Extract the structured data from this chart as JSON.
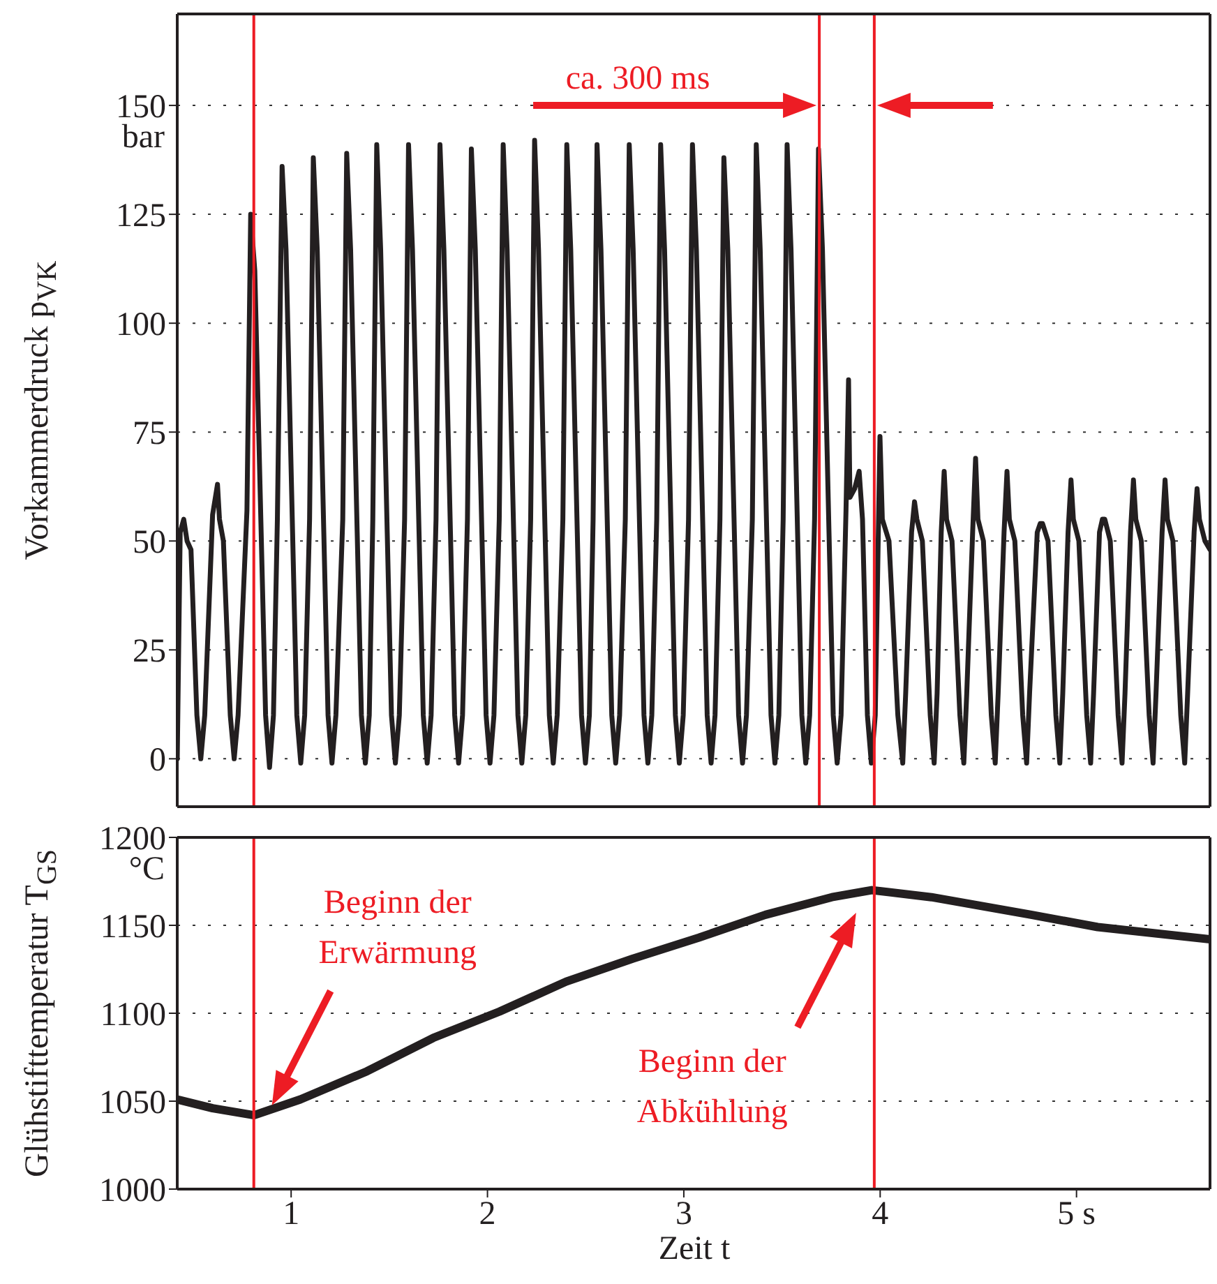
{
  "chart_data": [
    {
      "type": "line",
      "ylabel": "Vorkammerdruck p$_{VK}$",
      "xlim": [
        0.42,
        5.68
      ],
      "xticks": [
        1,
        2,
        3,
        4,
        5
      ],
      "ylim": [
        -11,
        171
      ],
      "yticks": [
        0,
        25,
        50,
        75,
        100,
        125,
        150
      ],
      "grid": "y",
      "marker": "none",
      "tick_labels": "y",
      "x": [
        0.42,
        0.435,
        0.453,
        0.47,
        0.49,
        0.52,
        0.54,
        0.56,
        0.6,
        0.625,
        0.635,
        0.655,
        0.69,
        0.71,
        0.73,
        0.775,
        0.794,
        0.815,
        0.87,
        0.89,
        0.91,
        0.93,
        0.954,
        0.974,
        1.029,
        1.049,
        1.069,
        1.094,
        1.113,
        1.133,
        1.188,
        1.208,
        1.228,
        1.263,
        1.283,
        1.303,
        1.358,
        1.378,
        1.398,
        1.416,
        1.436,
        1.456,
        1.511,
        1.531,
        1.551,
        1.578,
        1.598,
        1.618,
        1.673,
        1.693,
        1.713,
        1.738,
        1.758,
        1.778,
        1.833,
        1.853,
        1.873,
        1.898,
        1.918,
        1.938,
        1.993,
        2.013,
        2.033,
        2.06,
        2.08,
        2.1,
        2.155,
        2.175,
        2.195,
        2.22,
        2.24,
        2.26,
        2.315,
        2.335,
        2.355,
        2.384,
        2.404,
        2.424,
        2.479,
        2.499,
        2.519,
        2.538,
        2.558,
        2.578,
        2.633,
        2.653,
        2.673,
        2.702,
        2.722,
        2.742,
        2.797,
        2.817,
        2.837,
        2.862,
        2.882,
        2.902,
        2.957,
        2.977,
        2.997,
        3.024,
        3.044,
        3.064,
        3.119,
        3.139,
        3.159,
        3.184,
        3.204,
        3.224,
        3.279,
        3.299,
        3.319,
        3.349,
        3.369,
        3.389,
        3.444,
        3.464,
        3.484,
        3.506,
        3.526,
        3.546,
        3.601,
        3.621,
        3.641,
        3.666,
        3.686,
        3.706,
        3.761,
        3.781,
        3.801,
        3.826,
        3.839,
        3.846,
        3.87,
        3.893,
        3.91,
        3.935,
        3.955,
        3.975,
        3.99,
        3.999,
        4.011,
        4.045,
        4.09,
        4.115,
        4.13,
        4.16,
        4.175,
        4.187,
        4.215,
        4.255,
        4.275,
        4.29,
        4.311,
        4.326,
        4.338,
        4.366,
        4.406,
        4.426,
        4.441,
        4.471,
        4.486,
        4.498,
        4.526,
        4.566,
        4.586,
        4.601,
        4.631,
        4.646,
        4.658,
        4.686,
        4.726,
        4.746,
        4.761,
        4.8,
        4.815,
        4.827,
        4.855,
        4.895,
        4.915,
        4.93,
        4.957,
        4.972,
        4.984,
        5.012,
        5.052,
        5.072,
        5.087,
        5.117,
        5.132,
        5.144,
        5.172,
        5.212,
        5.232,
        5.247,
        5.275,
        5.29,
        5.302,
        5.33,
        5.37,
        5.39,
        5.405,
        5.436,
        5.451,
        5.463,
        5.491,
        5.531,
        5.551,
        5.566,
        5.599,
        5.614,
        5.626,
        5.654,
        5.68
      ],
      "series": [
        {
          "color": "#231f20",
          "values": [
            0,
            52,
            55,
            50,
            48,
            10,
            0,
            10,
            56,
            63,
            55,
            50,
            10,
            0,
            10,
            57,
            125,
            112,
            10,
            -2,
            10,
            55,
            136,
            117,
            10,
            -1,
            10,
            55,
            138,
            117,
            10,
            -1,
            10,
            55,
            139,
            117,
            10,
            -1,
            10,
            55,
            141,
            117,
            10,
            -1,
            10,
            55,
            141,
            117,
            10,
            -1,
            10,
            55,
            141,
            117,
            10,
            -1,
            10,
            55,
            140,
            117,
            10,
            -1,
            10,
            55,
            141,
            117,
            10,
            -1,
            10,
            55,
            142,
            117,
            10,
            -1,
            10,
            55,
            141,
            117,
            10,
            -1,
            10,
            55,
            141,
            117,
            10,
            -1,
            10,
            55,
            141,
            117,
            10,
            -1,
            10,
            55,
            141,
            117,
            10,
            -1,
            10,
            55,
            141,
            117,
            10,
            -1,
            10,
            55,
            138,
            117,
            10,
            -1,
            10,
            55,
            141,
            117,
            10,
            -1,
            10,
            55,
            141,
            117,
            10,
            -1,
            10,
            55,
            140,
            117,
            10,
            -1,
            10,
            57,
            87,
            60,
            62,
            66,
            55,
            10,
            -1,
            10,
            50,
            74,
            55,
            50,
            10,
            -1,
            15,
            52,
            59,
            55,
            50,
            10,
            -1,
            15,
            52,
            66,
            55,
            50,
            10,
            -1,
            15,
            52,
            69,
            55,
            50,
            10,
            -1,
            15,
            52,
            66,
            55,
            50,
            10,
            -1,
            15,
            52,
            54,
            54,
            50,
            10,
            -1,
            15,
            52,
            64,
            55,
            50,
            10,
            -1,
            15,
            52,
            55,
            55,
            50,
            10,
            -1,
            15,
            52,
            64,
            55,
            50,
            10,
            -1,
            15,
            52,
            64,
            55,
            50,
            10,
            -1,
            15,
            52,
            62,
            55,
            50,
            48
          ]
        }
      ],
      "ref_lines": [
        {
          "axis": "x",
          "value": 0.81,
          "color": "#ed1c24"
        },
        {
          "axis": "x",
          "value": 3.69,
          "color": "#ed1c24"
        },
        {
          "axis": "x",
          "value": 3.97,
          "color": "#ed1c24"
        }
      ],
      "annotations": [
        "bar",
        "ca. 300 ms"
      ]
    },
    {
      "type": "line",
      "ylabel": "Glühstifttemperatur T$_{GS}$",
      "xlabel": "Zeit t",
      "xlim": [
        0.42,
        5.68
      ],
      "xticks": [
        1,
        2,
        3,
        4,
        {
          "value": 5,
          "label": "5 s"
        }
      ],
      "ylim": [
        1000,
        1200
      ],
      "yticks": [
        1000,
        1050,
        1100,
        1150,
        1200
      ],
      "grid": "y",
      "marker": "none",
      "x": [
        0.42,
        0.6,
        0.811,
        1.047,
        1.386,
        1.724,
        2.062,
        2.401,
        2.739,
        3.077,
        3.416,
        3.754,
        3.957,
        4.261,
        4.769,
        5.108,
        5.68
      ],
      "series": [
        {
          "color": "#231f20",
          "values": [
            1051,
            1046,
            1042,
            1051,
            1067,
            1086,
            1101,
            1118,
            1131,
            1143,
            1156,
            1166,
            1170,
            1166,
            1156,
            1149,
            1142
          ]
        }
      ],
      "ref_lines": [
        {
          "axis": "x",
          "value": 0.81,
          "color": "#ed1c24"
        },
        {
          "axis": "x",
          "value": 3.97,
          "color": "#ed1c24"
        }
      ],
      "annotations": [
        "°C",
        "Beginn der Erwärmung",
        "Beginn der Abkühlung"
      ]
    }
  ]
}
